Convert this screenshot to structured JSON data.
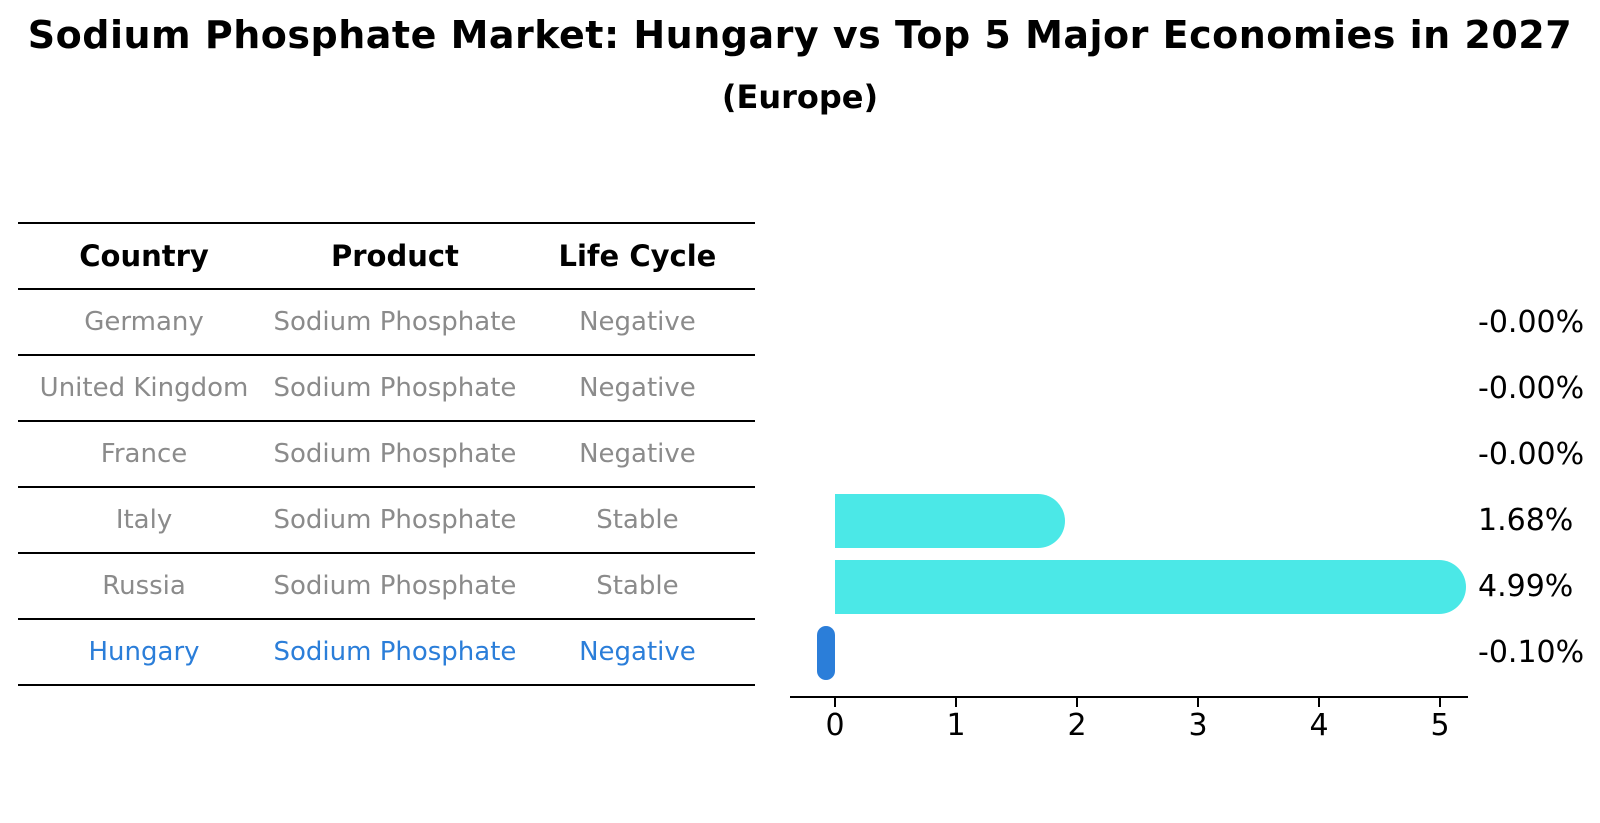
{
  "title": "Sodium Phosphate Market: Hungary vs Top 5 Major Economies in 2027",
  "subtitle": "(Europe)",
  "table": {
    "headers": [
      "Country",
      "Product",
      "Life Cycle"
    ],
    "rows": [
      {
        "country": "Germany",
        "product": "Sodium Phosphate",
        "life_cycle": "Negative",
        "highlight": false
      },
      {
        "country": "United Kingdom",
        "product": "Sodium Phosphate",
        "life_cycle": "Negative",
        "highlight": false
      },
      {
        "country": "France",
        "product": "Sodium Phosphate",
        "life_cycle": "Negative",
        "highlight": false
      },
      {
        "country": "Italy",
        "product": "Sodium Phosphate",
        "life_cycle": "Stable",
        "highlight": false
      },
      {
        "country": "Russia",
        "product": "Sodium Phosphate",
        "life_cycle": "Stable",
        "highlight": false
      },
      {
        "country": "Hungary",
        "product": "Sodium Phosphate",
        "life_cycle": "Negative",
        "highlight": true
      }
    ]
  },
  "chart_data": {
    "type": "bar",
    "orientation": "horizontal",
    "categories": [
      "Germany",
      "United Kingdom",
      "France",
      "Italy",
      "Russia",
      "Hungary"
    ],
    "values": [
      -0.0,
      -0.0,
      -0.0,
      1.68,
      4.99,
      -0.1
    ],
    "value_labels": [
      "-0.00%",
      "-0.00%",
      "-0.00%",
      "1.68%",
      "4.99%",
      "-0.10%"
    ],
    "x_ticks": [
      0,
      1,
      2,
      3,
      4,
      5
    ],
    "xlim": [
      -0.37,
      5.23
    ],
    "unit_suffix": "%",
    "grid": false,
    "legend": false,
    "bar_color": "#4BE8E7",
    "highlight_color": "#2B7ED9",
    "highlight_index": 5
  },
  "colors": {
    "background": "#ffffff",
    "text_primary": "#000000",
    "text_muted": "#8b8b8b",
    "bar": "#4BE8E7",
    "highlight": "#2B7ED9",
    "axis": "#000000"
  }
}
